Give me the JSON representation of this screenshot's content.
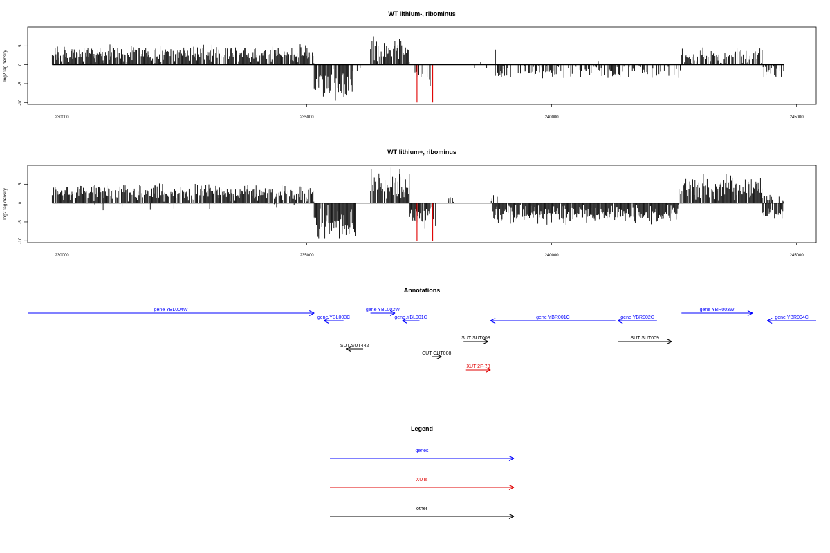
{
  "chart_data": [
    {
      "type": "bar",
      "title": "WT lithium-, ribominus",
      "ylabel": "log2 tag density",
      "xlim": [
        229300,
        245400
      ],
      "ylim": [
        -10.5,
        10
      ],
      "xticks": [
        230000,
        235000,
        240000,
        245000
      ],
      "yticks": [
        -10,
        -5,
        0,
        5
      ],
      "colors": {
        "default": "#000000",
        "highlight": "#e00000"
      },
      "segments": [
        {
          "x0": 229800,
          "x1": 235150,
          "strand": "+",
          "density": 0.88,
          "mean": 2.8,
          "var": 2.0
        },
        {
          "x0": 235150,
          "x1": 235950,
          "strand": "-",
          "density": 0.9,
          "mean": 5.5,
          "var": 4.0
        },
        {
          "x0": 235950,
          "x1": 236300,
          "strand": "-",
          "density": 0.12,
          "mean": 1.5,
          "var": 1.0
        },
        {
          "x0": 236300,
          "x1": 237100,
          "strand": "+",
          "density": 0.9,
          "mean": 4.0,
          "var": 3.5
        },
        {
          "x0": 237100,
          "x1": 237600,
          "strand": "-",
          "density": 0.35,
          "mean": 3.0,
          "var": 2.0
        },
        {
          "x0": 237600,
          "x1": 238850,
          "strand": "-",
          "density": 0.02,
          "mean": 1.0,
          "var": 0.5
        },
        {
          "x0": 238850,
          "x1": 242650,
          "strand": "-",
          "density": 0.4,
          "mean": 1.8,
          "var": 1.5
        },
        {
          "x0": 242650,
          "x1": 244300,
          "strand": "+",
          "density": 0.75,
          "mean": 2.2,
          "var": 2.0
        },
        {
          "x0": 244300,
          "x1": 244750,
          "strand": "-",
          "density": 0.5,
          "mean": 1.8,
          "var": 1.5
        }
      ],
      "spikes": [
        {
          "x": 237250,
          "y": -10,
          "color": "#e00000"
        },
        {
          "x": 237570,
          "y": -10,
          "color": "#e00000"
        },
        {
          "x": 238550,
          "y": 0.8,
          "color": "#000000"
        },
        {
          "x": 238850,
          "y": 4.0,
          "color": "#000000"
        },
        {
          "x": 240950,
          "y": 1.0,
          "color": "#000000"
        }
      ]
    },
    {
      "type": "bar",
      "title": "WT lithium+, ribominus",
      "ylabel": "log2 tag density",
      "xlim": [
        229300,
        245400
      ],
      "ylim": [
        -10.5,
        10
      ],
      "xticks": [
        230000,
        235000,
        240000,
        245000
      ],
      "yticks": [
        -10,
        -5,
        0,
        5
      ],
      "colors": {
        "default": "#000000",
        "highlight": "#e00000"
      },
      "segments": [
        {
          "x0": 229800,
          "x1": 235150,
          "strand": "+",
          "density": 0.9,
          "mean": 2.6,
          "var": 2.0
        },
        {
          "x0": 229800,
          "x1": 235150,
          "strand": "-",
          "density": 0.04,
          "mean": 1.0,
          "var": 1.0
        },
        {
          "x0": 235150,
          "x1": 236000,
          "strand": "-",
          "density": 0.92,
          "mean": 5.5,
          "var": 4.0
        },
        {
          "x0": 236300,
          "x1": 237100,
          "strand": "+",
          "density": 0.92,
          "mean": 4.5,
          "var": 4.0
        },
        {
          "x0": 237100,
          "x1": 237650,
          "strand": "-",
          "density": 0.9,
          "mean": 4.0,
          "var": 2.5
        },
        {
          "x0": 237650,
          "x1": 238200,
          "strand": "+",
          "density": 0.08,
          "mean": 1.0,
          "var": 0.6
        },
        {
          "x0": 238750,
          "x1": 238950,
          "strand": "+",
          "density": 0.25,
          "mean": 1.5,
          "var": 1.0
        },
        {
          "x0": 238800,
          "x1": 242600,
          "strand": "-",
          "density": 0.95,
          "mean": 3.0,
          "var": 2.2
        },
        {
          "x0": 242600,
          "x1": 244300,
          "strand": "+",
          "density": 0.92,
          "mean": 4.0,
          "var": 3.0
        },
        {
          "x0": 244300,
          "x1": 244750,
          "strand": "-",
          "density": 0.9,
          "mean": 2.8,
          "var": 2.0
        },
        {
          "x0": 244300,
          "x1": 244750,
          "strand": "+",
          "density": 0.5,
          "mean": 1.5,
          "var": 1.0
        }
      ],
      "spikes": [
        {
          "x": 237250,
          "y": -10,
          "color": "#e00000"
        },
        {
          "x": 237570,
          "y": -10,
          "color": "#e00000"
        },
        {
          "x": 236900,
          "y": 9.0,
          "color": "#000000"
        }
      ]
    }
  ],
  "annotations": {
    "title": "Annotations",
    "xlim": [
      229300,
      245400
    ],
    "items": [
      {
        "label": "gene YBL004W",
        "type": "gene",
        "start": 229300,
        "end": 235150,
        "strand": "+",
        "row": 0
      },
      {
        "label": "gene YBL003C",
        "type": "gene",
        "start": 235350,
        "end": 235750,
        "strand": "-",
        "row": 1
      },
      {
        "label": "gene YBL002W",
        "type": "gene",
        "start": 236300,
        "end": 236800,
        "strand": "+",
        "row": 0
      },
      {
        "label": "gene YBL001C",
        "type": "gene",
        "start": 236950,
        "end": 237300,
        "strand": "-",
        "row": 1
      },
      {
        "label": "gene YBR001C",
        "type": "gene",
        "start": 238750,
        "end": 241300,
        "strand": "-",
        "row": 1
      },
      {
        "label": "gene YBR002C",
        "type": "gene",
        "start": 241350,
        "end": 242150,
        "strand": "-",
        "row": 1
      },
      {
        "label": "gene YBR003W",
        "type": "gene",
        "start": 242650,
        "end": 244100,
        "strand": "+",
        "row": 0
      },
      {
        "label": "gene YBR004C",
        "type": "gene",
        "start": 244400,
        "end": 245400,
        "strand": "-",
        "row": 1
      },
      {
        "label": "SUT SUT442",
        "type": "other",
        "start": 235800,
        "end": 236150,
        "strand": "-",
        "row": 3
      },
      {
        "label": "SUT SUT008",
        "type": "other",
        "start": 238200,
        "end": 238700,
        "strand": "+",
        "row": 2
      },
      {
        "label": "CUT CUT008",
        "type": "other",
        "start": 237550,
        "end": 237750,
        "strand": "+",
        "row": 4
      },
      {
        "label": "SUT SUT009",
        "type": "other",
        "start": 241350,
        "end": 242450,
        "strand": "+",
        "row": 2
      },
      {
        "label": "XUT 2F-78",
        "type": "xut",
        "start": 238250,
        "end": 238750,
        "strand": "+",
        "row": 5
      }
    ],
    "colors": {
      "gene": "#0000ff",
      "xut": "#e00000",
      "other": "#000000"
    }
  },
  "legend": {
    "title": "Legend",
    "entries": [
      {
        "label": "genes",
        "color": "#0000ff"
      },
      {
        "label": "XUTs",
        "color": "#e00000"
      },
      {
        "label": "other",
        "color": "#000000"
      }
    ]
  }
}
